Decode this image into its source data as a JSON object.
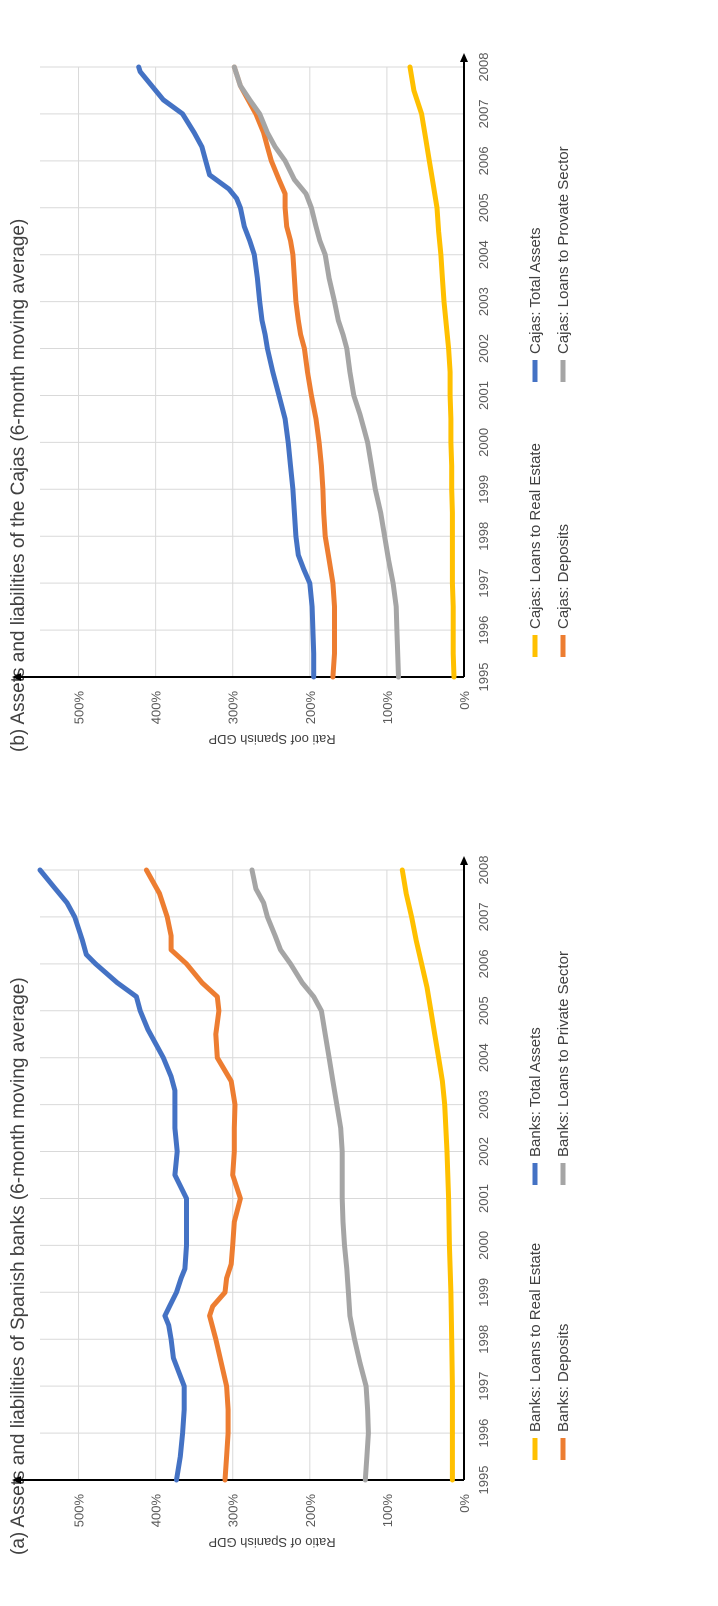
{
  "colors": {
    "blue": "#4472c4",
    "orange": "#ed7d31",
    "gray": "#a5a5a5",
    "yellow": "#ffc000"
  },
  "chart_data": [
    {
      "type": "line",
      "title": "(a) Assets and liabilities of Spanish banks (6-month moving average)",
      "ylabel": "Ratio of Spanish  GDP",
      "xlabel": "",
      "x_ticks": [
        "1995",
        "1996",
        "1997",
        "1998",
        "1999",
        "2000",
        "2001",
        "2002",
        "2003",
        "2004",
        "2005",
        "2006",
        "2007",
        "2008"
      ],
      "y_ticks": [
        "0%",
        "100%",
        "200%",
        "300%",
        "400%",
        "500%"
      ],
      "xlim": [
        1995,
        2008
      ],
      "ylim": [
        0,
        550
      ],
      "grid": true,
      "legend_position": "bottom",
      "series": [
        {
          "name": "Banks: Loans to Real Estate",
          "color": "#ffc000",
          "x": [
            1995.0,
            1996.0,
            1997.0,
            1998.0,
            1999.0,
            2000.0,
            2001.0,
            2002.0,
            2003.0,
            2003.5,
            2004.0,
            2004.5,
            2005.0,
            2005.5,
            2006.0,
            2006.5,
            2007.0,
            2007.5,
            2008.0
          ],
          "y": [
            15,
            15,
            15,
            16,
            17,
            19,
            20,
            22,
            25,
            28,
            33,
            38,
            43,
            48,
            55,
            62,
            68,
            75,
            80
          ]
        },
        {
          "name": "Banks: Total Assets",
          "color": "#4472c4",
          "x": [
            1995.0,
            1995.5,
            1996.0,
            1996.5,
            1997.0,
            1997.3,
            1997.6,
            1998.0,
            1998.3,
            1998.5,
            1998.7,
            1999.0,
            1999.3,
            1999.5,
            2000.0,
            2000.5,
            2001.0,
            2001.5,
            2002.0,
            2002.5,
            2003.0,
            2003.3,
            2003.6,
            2004.0,
            2004.3,
            2004.6,
            2005.0,
            2005.3,
            2005.6,
            2006.0,
            2006.2,
            2006.5,
            2007.0,
            2007.3,
            2007.6,
            2008.0
          ],
          "y": [
            373,
            368,
            365,
            363,
            363,
            370,
            377,
            380,
            383,
            388,
            382,
            373,
            367,
            362,
            360,
            360,
            360,
            375,
            372,
            375,
            375,
            375,
            380,
            390,
            400,
            410,
            420,
            425,
            450,
            478,
            490,
            495,
            505,
            515,
            530,
            550
          ]
        },
        {
          "name": "Banks: Deposits",
          "color": "#ed7d31",
          "x": [
            1995.0,
            1995.5,
            1996.0,
            1996.5,
            1997.0,
            1997.5,
            1998.0,
            1998.5,
            1998.7,
            1999.0,
            1999.3,
            1999.6,
            2000.0,
            2000.5,
            2001.0,
            2001.5,
            2002.0,
            2002.5,
            2003.0,
            2003.5,
            2004.0,
            2004.5,
            2005.0,
            2005.3,
            2005.6,
            2006.0,
            2006.3,
            2006.6,
            2007.0,
            2007.5,
            2008.0
          ],
          "y": [
            310,
            308,
            306,
            306,
            308,
            315,
            322,
            330,
            326,
            310,
            308,
            302,
            300,
            298,
            290,
            300,
            298,
            298,
            297,
            302,
            320,
            322,
            318,
            320,
            340,
            360,
            380,
            380,
            385,
            395,
            412
          ]
        },
        {
          "name": "Banks: Loans to Private Sector",
          "color": "#a5a5a5",
          "x": [
            1995.0,
            1995.5,
            1996.0,
            1996.5,
            1997.0,
            1997.5,
            1998.0,
            1998.5,
            1999.0,
            1999.5,
            2000.0,
            2000.5,
            2001.0,
            2001.5,
            2002.0,
            2002.5,
            2003.0,
            2003.5,
            2004.0,
            2004.5,
            2005.0,
            2005.3,
            2005.6,
            2006.0,
            2006.3,
            2006.6,
            2007.0,
            2007.3,
            2007.6,
            2008.0
          ],
          "y": [
            128,
            126,
            124,
            125,
            127,
            135,
            142,
            148,
            150,
            152,
            155,
            157,
            158,
            158,
            158,
            160,
            165,
            170,
            175,
            180,
            185,
            195,
            210,
            225,
            238,
            245,
            255,
            260,
            270,
            275
          ]
        }
      ]
    },
    {
      "type": "line",
      "title": "(b) Assets and liabilities of the Cajas (6-month moving average)",
      "ylabel": "Rati oof Spanish  GDP",
      "xlabel": "",
      "x_ticks": [
        "1995",
        "1996",
        "1997",
        "1998",
        "1999",
        "2000",
        "2001",
        "2002",
        "2003",
        "2004",
        "2005",
        "2006",
        "2007",
        "2008"
      ],
      "y_ticks": [
        "0%",
        "100%",
        "200%",
        "300%",
        "400%",
        "500%"
      ],
      "xlim": [
        1995,
        2008
      ],
      "ylim": [
        0,
        550
      ],
      "grid": true,
      "legend_position": "bottom",
      "series": [
        {
          "name": "Cajas: Loans to Real Estate",
          "color": "#ffc000",
          "x": [
            1995.0,
            1995.5,
            1996.0,
            1996.5,
            1997.0,
            1997.5,
            1998.0,
            1998.5,
            1999.0,
            1999.5,
            2000.0,
            2000.5,
            2001.0,
            2001.5,
            2002.0,
            2002.5,
            2003.0,
            2003.5,
            2004.0,
            2004.5,
            2005.0,
            2005.5,
            2006.0,
            2006.5,
            2007.0,
            2007.5,
            2008.0
          ],
          "y": [
            13,
            14,
            14,
            14,
            15,
            15,
            15,
            15,
            16,
            16,
            17,
            17,
            18,
            18,
            20,
            23,
            26,
            28,
            30,
            33,
            35,
            40,
            45,
            50,
            55,
            65,
            70
          ]
        },
        {
          "name": "Cajas: Total Assets",
          "color": "#4472c4",
          "x": [
            1995.0,
            1995.5,
            1996.0,
            1996.5,
            1997.0,
            1997.3,
            1997.6,
            1998.0,
            1998.5,
            1999.0,
            1999.5,
            2000.0,
            2000.5,
            2001.0,
            2001.5,
            2002.0,
            2002.3,
            2002.6,
            2003.0,
            2003.5,
            2004.0,
            2004.3,
            2004.6,
            2005.0,
            2005.2,
            2005.4,
            2005.7,
            2006.0,
            2006.3,
            2006.6,
            2007.0,
            2007.3,
            2007.6,
            2007.9,
            2008.0
          ],
          "y": [
            195,
            195,
            196,
            197,
            200,
            208,
            215,
            218,
            220,
            222,
            225,
            228,
            232,
            240,
            248,
            255,
            258,
            262,
            265,
            268,
            272,
            278,
            285,
            290,
            295,
            305,
            330,
            335,
            340,
            350,
            365,
            390,
            405,
            420,
            422
          ]
        },
        {
          "name": "Cajas: Deposits",
          "color": "#ed7d31",
          "x": [
            1995.0,
            1995.5,
            1996.0,
            1996.5,
            1997.0,
            1997.5,
            1998.0,
            1998.5,
            1999.0,
            1999.5,
            2000.0,
            2000.5,
            2001.0,
            2001.5,
            2002.0,
            2002.3,
            2002.6,
            2003.0,
            2003.5,
            2004.0,
            2004.3,
            2004.6,
            2005.0,
            2005.3,
            2005.6,
            2006.0,
            2006.3,
            2006.6,
            2007.0,
            2007.3,
            2007.6,
            2008.0
          ],
          "y": [
            170,
            168,
            168,
            168,
            170,
            175,
            180,
            182,
            183,
            185,
            188,
            192,
            198,
            203,
            207,
            212,
            215,
            218,
            220,
            222,
            225,
            230,
            232,
            232,
            240,
            250,
            255,
            260,
            270,
            280,
            290,
            298
          ]
        },
        {
          "name": "Cajas: Loans to Provate Sector",
          "color": "#a5a5a5",
          "x": [
            1995.0,
            1995.5,
            1996.0,
            1996.5,
            1997.0,
            1997.5,
            1998.0,
            1998.5,
            1999.0,
            1999.5,
            2000.0,
            2000.3,
            2000.6,
            2001.0,
            2001.5,
            2002.0,
            2002.3,
            2002.6,
            2003.0,
            2003.5,
            2004.0,
            2004.3,
            2004.6,
            2005.0,
            2005.3,
            2005.6,
            2006.0,
            2006.3,
            2006.6,
            2007.0,
            2007.3,
            2007.6,
            2008.0
          ],
          "y": [
            85,
            86,
            87,
            88,
            92,
            98,
            103,
            108,
            115,
            120,
            125,
            130,
            135,
            143,
            148,
            152,
            157,
            163,
            168,
            175,
            180,
            187,
            192,
            198,
            205,
            220,
            232,
            245,
            255,
            265,
            278,
            290,
            298
          ]
        }
      ]
    }
  ]
}
